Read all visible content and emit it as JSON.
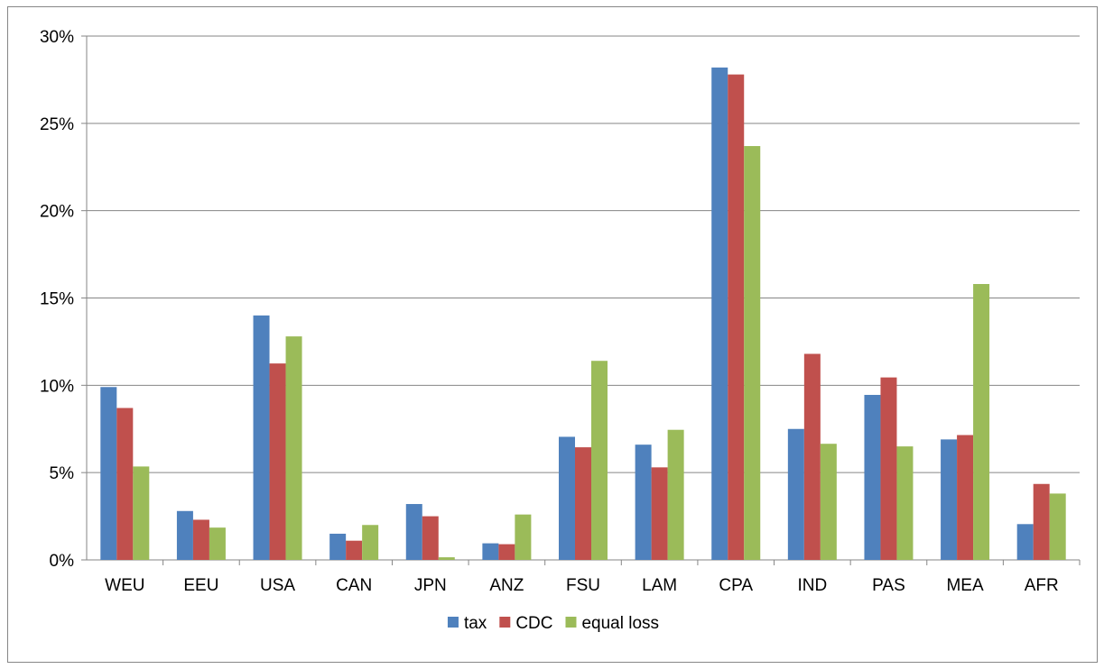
{
  "chart_data": {
    "type": "bar",
    "categories": [
      "WEU",
      "EEU",
      "USA",
      "CAN",
      "JPN",
      "ANZ",
      "FSU",
      "LAM",
      "CPA",
      "IND",
      "PAS",
      "MEA",
      "AFR"
    ],
    "series": [
      {
        "name": "tax",
        "color": "#4F81BD",
        "values": [
          9.9,
          2.8,
          14.0,
          1.5,
          3.2,
          0.95,
          7.05,
          6.6,
          28.2,
          7.5,
          9.45,
          6.9,
          2.05
        ]
      },
      {
        "name": "CDC",
        "color": "#C0504D",
        "values": [
          8.7,
          2.3,
          11.25,
          1.1,
          2.5,
          0.9,
          6.45,
          5.3,
          27.8,
          11.8,
          10.45,
          7.15,
          4.35
        ]
      },
      {
        "name": "equal loss",
        "color": "#9BBB59",
        "values": [
          5.35,
          1.85,
          12.8,
          2.0,
          0.15,
          2.6,
          11.4,
          7.45,
          23.7,
          6.65,
          6.5,
          15.8,
          3.8
        ]
      }
    ],
    "y_ticks": [
      "0%",
      "5%",
      "10%",
      "15%",
      "20%",
      "25%",
      "30%"
    ],
    "ylim": [
      0,
      30
    ],
    "y_tick_step": 5,
    "grid": "horizontal",
    "legend_position": "bottom",
    "title": "",
    "xlabel": "",
    "ylabel": ""
  }
}
